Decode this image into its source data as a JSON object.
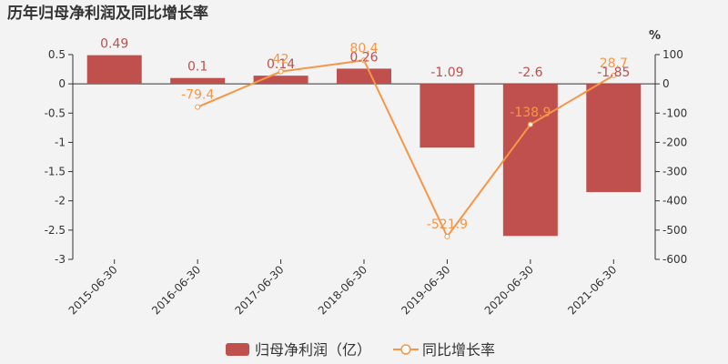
{
  "chart_data": {
    "type": "bar",
    "title": "历年归母净利润及同比增长率",
    "categories": [
      "2015-06-30",
      "2016-06-30",
      "2017-06-30",
      "2018-06-30",
      "2019-06-30",
      "2020-06-30",
      "2021-06-30"
    ],
    "series": [
      {
        "name": "归母净利润（亿）",
        "type": "bar",
        "axis": "left",
        "color": "#c0504d",
        "values": [
          0.49,
          0.1,
          0.14,
          0.26,
          -1.09,
          -2.6,
          -1.85
        ],
        "labels": [
          "0.49",
          "0.1",
          "0.14",
          "0.26",
          "-1.09",
          "-2.6",
          "-1.85"
        ]
      },
      {
        "name": "同比增长率",
        "type": "line",
        "axis": "right",
        "color": "#f79646",
        "values": [
          null,
          -79.4,
          42,
          80.4,
          -521.9,
          -138.9,
          28.7
        ],
        "labels": [
          "",
          "-79.4",
          "42",
          "80.4",
          "-521.9",
          "-138.9",
          "28.7"
        ]
      }
    ],
    "y_left": {
      "ylim": [
        -3,
        0.5
      ],
      "ticks": [
        0.5,
        0,
        -0.5,
        -1,
        -1.5,
        -2,
        -2.5,
        -3
      ],
      "tick_labels": [
        "0.5",
        "0",
        "-0.5",
        "-1",
        "-1.5",
        "-2",
        "-2.5",
        "-3"
      ]
    },
    "y_right": {
      "unit": "%",
      "ylim": [
        -600,
        100
      ],
      "ticks": [
        100,
        0,
        -100,
        -200,
        -300,
        -400,
        -500,
        -600
      ],
      "tick_labels": [
        "100",
        "0",
        "-100",
        "-200",
        "-300",
        "-400",
        "-500",
        "-600"
      ]
    },
    "grid": false,
    "legend": "bottom-center"
  }
}
